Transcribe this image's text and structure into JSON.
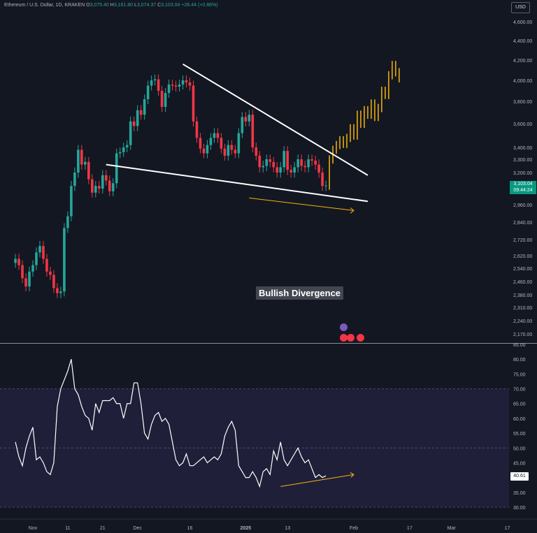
{
  "header": {
    "symbol": "Ethereum / U.S. Dollar, 1D, KRAKEN",
    "o_label": "O",
    "o_value": "3,075.40",
    "h_label": "H",
    "h_value": "3,161.80",
    "l_label": "L",
    "l_value": "3,074.37",
    "c_label": "C",
    "c_value": "3,103.04",
    "change": "+26.44 (+0.86%)"
  },
  "currency_button": "USD",
  "annotation": "Bullish Divergence",
  "price_tag": {
    "price": "3,103.04",
    "countdown": "09:44:24"
  },
  "rsi_tag": "40.61",
  "colors": {
    "up": "#26a69a",
    "down": "#f23645",
    "projection": "#f5b40a",
    "trendline": "#ffffff",
    "divergence_arrow": "#f5b40a",
    "rsi_line": "#ffffff",
    "rsi_band": "#1f1f3a"
  },
  "chart_data": [
    {
      "type": "candlestick",
      "price_axis_ticks": [
        "4,600.00",
        "4,400.00",
        "4,200.00",
        "4,000.00",
        "3,800.00",
        "3,600.00",
        "3,400.00",
        "3,300.00",
        "3,200.00",
        "2,960.00",
        "2,840.00",
        "2,720.00",
        "2,620.00",
        "2,540.00",
        "2,460.00",
        "2,380.00",
        "2,310.00",
        "2,240.00",
        "2,170.00"
      ],
      "price_axis_values": [
        4600,
        4400,
        4200,
        4000,
        3800,
        3600,
        3400,
        3300,
        3200,
        2960,
        2840,
        2720,
        2620,
        2540,
        2460,
        2380,
        2310,
        2240,
        2170
      ],
      "x_axis_ticks": [
        "Nov",
        "11",
        "21",
        "Dec",
        "16",
        "2025",
        "13",
        "Feb",
        "17",
        "Mar",
        "17"
      ],
      "x_axis_days": [
        0,
        10,
        20,
        30,
        45,
        61,
        73,
        92,
        108,
        120,
        136
      ],
      "candles_day_c_pairs": [
        [
          -5,
          2600
        ],
        [
          -4,
          2560
        ],
        [
          -3,
          2480
        ],
        [
          -2,
          2430
        ],
        [
          -1,
          2520
        ],
        [
          0,
          2560
        ],
        [
          1,
          2640
        ],
        [
          2,
          2680
        ],
        [
          3,
          2600
        ],
        [
          4,
          2520
        ],
        [
          5,
          2500
        ],
        [
          6,
          2420
        ],
        [
          7,
          2390
        ],
        [
          8,
          2400
        ],
        [
          9,
          2800
        ],
        [
          10,
          2880
        ],
        [
          11,
          3100
        ],
        [
          12,
          3200
        ],
        [
          13,
          3380
        ],
        [
          14,
          3260
        ],
        [
          15,
          3280
        ],
        [
          16,
          3150
        ],
        [
          17,
          3050
        ],
        [
          18,
          3100
        ],
        [
          19,
          3080
        ],
        [
          20,
          3180
        ],
        [
          21,
          3140
        ],
        [
          22,
          3060
        ],
        [
          23,
          3120
        ],
        [
          24,
          3350
        ],
        [
          25,
          3360
        ],
        [
          26,
          3400
        ],
        [
          27,
          3420
        ],
        [
          28,
          3620
        ],
        [
          29,
          3580
        ],
        [
          30,
          3720
        ],
        [
          31,
          3680
        ],
        [
          32,
          3820
        ],
        [
          33,
          3950
        ],
        [
          34,
          4000
        ],
        [
          35,
          4010
        ],
        [
          36,
          3900
        ],
        [
          37,
          3750
        ],
        [
          38,
          3880
        ],
        [
          39,
          3960
        ],
        [
          40,
          3950
        ],
        [
          41,
          3940
        ],
        [
          42,
          3960
        ],
        [
          43,
          4000
        ],
        [
          44,
          3980
        ],
        [
          45,
          3950
        ],
        [
          46,
          3620
        ],
        [
          47,
          3480
        ],
        [
          48,
          3390
        ],
        [
          49,
          3350
        ],
        [
          50,
          3420
        ],
        [
          51,
          3480
        ],
        [
          52,
          3520
        ],
        [
          53,
          3480
        ],
        [
          54,
          3390
        ],
        [
          55,
          3330
        ],
        [
          56,
          3420
        ],
        [
          57,
          3380
        ],
        [
          58,
          3350
        ],
        [
          59,
          3520
        ],
        [
          60,
          3660
        ],
        [
          61,
          3620
        ],
        [
          62,
          3680
        ],
        [
          63,
          3400
        ],
        [
          64,
          3330
        ],
        [
          65,
          3240
        ],
        [
          66,
          3250
        ],
        [
          67,
          3300
        ],
        [
          68,
          3280
        ],
        [
          69,
          3240
        ],
        [
          70,
          3200
        ],
        [
          71,
          3240
        ],
        [
          72,
          3370
        ],
        [
          73,
          3220
        ],
        [
          74,
          3200
        ],
        [
          75,
          3240
        ],
        [
          76,
          3300
        ],
        [
          77,
          3250
        ],
        [
          78,
          3240
        ],
        [
          79,
          3300
        ],
        [
          80,
          3290
        ],
        [
          81,
          3260
        ],
        [
          82,
          3200
        ],
        [
          83,
          3100
        ],
        [
          84,
          3103
        ]
      ],
      "projection_day_c_pairs": [
        [
          85,
          3300
        ],
        [
          86,
          3380
        ],
        [
          87,
          3420
        ],
        [
          88,
          3460
        ],
        [
          89,
          3430
        ],
        [
          90,
          3480
        ],
        [
          91,
          3560
        ],
        [
          92,
          3500
        ],
        [
          93,
          3680
        ],
        [
          94,
          3600
        ],
        [
          95,
          3720
        ],
        [
          96,
          3680
        ],
        [
          97,
          3780
        ],
        [
          98,
          3660
        ],
        [
          99,
          3740
        ],
        [
          100,
          3900
        ],
        [
          101,
          3860
        ],
        [
          102,
          4050
        ],
        [
          103,
          4150
        ],
        [
          104,
          4080
        ],
        [
          105,
          4020
        ]
      ],
      "trendlines": [
        {
          "from": [
            43,
            4160
          ],
          "to": [
            96,
            3180
          ]
        },
        {
          "from": [
            21,
            3260
          ],
          "to": [
            96,
            2985
          ]
        }
      ],
      "divergence_arrow": {
        "from": [
          62,
          3010
        ],
        "to": [
          92,
          2920
        ]
      }
    },
    {
      "type": "line",
      "name": "RSI",
      "y_axis_ticks": [
        "85.00",
        "80.00",
        "75.00",
        "70.00",
        "65.00",
        "60.00",
        "55.00",
        "50.00",
        "45.00",
        "40.00",
        "35.00",
        "30.00"
      ],
      "y_axis_values": [
        85,
        80,
        75,
        70,
        65,
        60,
        55,
        50,
        45,
        40,
        35,
        30
      ],
      "band": [
        30,
        70
      ],
      "guide_levels": [
        50
      ],
      "x": [
        -5,
        -4,
        -3,
        -2,
        -1,
        0,
        1,
        2,
        3,
        4,
        5,
        6,
        7,
        8,
        9,
        10,
        11,
        12,
        13,
        14,
        15,
        16,
        17,
        18,
        19,
        20,
        21,
        22,
        23,
        24,
        25,
        26,
        27,
        28,
        29,
        30,
        31,
        32,
        33,
        34,
        35,
        36,
        37,
        38,
        39,
        40,
        41,
        42,
        43,
        44,
        45,
        46,
        47,
        48,
        49,
        50,
        51,
        52,
        53,
        54,
        55,
        56,
        57,
        58,
        59,
        60,
        61,
        62,
        63,
        64,
        65,
        66,
        67,
        68,
        69,
        70,
        71,
        72,
        73,
        74,
        75,
        76,
        77,
        78,
        79,
        80,
        81,
        82,
        83,
        84
      ],
      "y": [
        52,
        47,
        44,
        50,
        54,
        57,
        46,
        47,
        45,
        42,
        41,
        45,
        64,
        70,
        73,
        76,
        80,
        70,
        68,
        64,
        61,
        60,
        56,
        65,
        62,
        66,
        66,
        66,
        67,
        65,
        65,
        60,
        65,
        65,
        72,
        72,
        65,
        55,
        53,
        58,
        61,
        62,
        59,
        60,
        58,
        52,
        46,
        44,
        45,
        48,
        44,
        44,
        45,
        46,
        47,
        45,
        46,
        47,
        46,
        48,
        54,
        57,
        59,
        56,
        44,
        42,
        40,
        40,
        42,
        40,
        37,
        42,
        43,
        41,
        49,
        46,
        52,
        46,
        44,
        46,
        48,
        50,
        47,
        45,
        46,
        43,
        40,
        41,
        40,
        40.61
      ],
      "arrow": {
        "from": [
          71,
          37
        ],
        "to": [
          92,
          41
        ]
      }
    }
  ]
}
